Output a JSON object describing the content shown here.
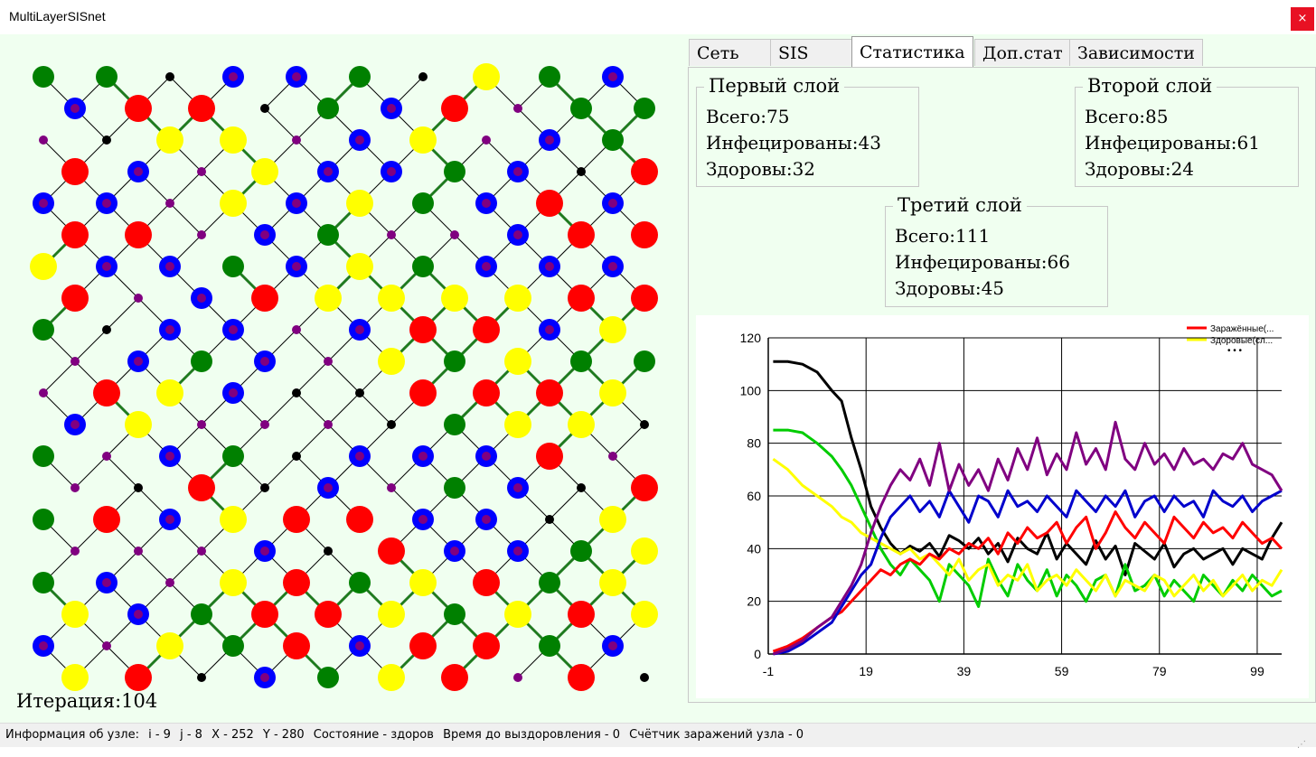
{
  "window": {
    "title": "MultiLayerSISnet",
    "close_label": "×"
  },
  "tabs": [
    "Сеть",
    "SIS",
    "Статистика",
    "Доп.стат",
    "Зависимости"
  ],
  "active_tab": 2,
  "iteration_label": "Итерация:104",
  "groups": [
    {
      "title": "Первый слой",
      "lines": [
        "Всего:75",
        "Инфецированы:43",
        "Здоровы:32"
      ]
    },
    {
      "title": "Второй слой",
      "lines": [
        "Всего:85",
        "Инфецированы:61",
        "Здоровы:24"
      ]
    },
    {
      "title": "Третий слой",
      "lines": [
        "Всего:111",
        "Инфецированы:66",
        "Здоровы:45"
      ]
    }
  ],
  "status": {
    "prefix": "Информация об узле:",
    "i": "i - 9",
    "j": "j - 8",
    "x": "X - 252",
    "y": "Y - 280",
    "state": "Состояние - здоров",
    "recovery": "Время до выздоровления - 0",
    "counter": "Счётчик заражений узла - 0"
  },
  "colors": {
    "infected": "#ff0000",
    "healthy": "#ffff00",
    "layer_blue": "#0000ff",
    "layer_green": "#008000",
    "small_node": "#800080",
    "tiny_node": "#000000",
    "edge_green": "#1f7a1f"
  },
  "network": {
    "cols": 20,
    "rows": 20,
    "rows_data": [
      "..B.p.......k..Y..........B...........B.....k",
      "....B...............Y...........p...........B...........k.....",
      ".......k...............B.........k...y..e........",
      "...k.......B..........S.........G...........G..B",
      "..k......................B.........P......."
    ]
  },
  "chart_data": {
    "type": "line",
    "title": "",
    "xlabel": "",
    "ylabel": "",
    "xlim": [
      -1,
      104
    ],
    "ylim": [
      0,
      120
    ],
    "x_ticks": [
      -1,
      19,
      39,
      59,
      79,
      99
    ],
    "y_ticks": [
      0,
      20,
      40,
      60,
      80,
      100,
      120
    ],
    "grid": true,
    "legend_position": "top-right",
    "legend_entries": [
      {
        "label": "Заражённые(...",
        "color": "#ff0000"
      },
      {
        "label": "Здоровые(сл...",
        "color": "#ffff00"
      }
    ],
    "legend_more": "• • •",
    "series": [
      {
        "color": "#000000",
        "x": [
          0,
          3,
          6,
          9,
          12,
          14,
          16,
          18,
          20,
          22,
          24,
          26,
          28,
          30,
          32,
          34,
          36,
          38,
          40,
          42,
          44,
          46,
          48,
          50,
          52,
          54,
          56,
          58,
          60,
          62,
          64,
          66,
          68,
          70,
          72,
          74,
          76,
          78,
          80,
          82,
          84,
          86,
          88,
          90,
          92,
          94,
          96,
          98,
          100,
          102,
          104
        ],
        "values": [
          111,
          111,
          110,
          107,
          100,
          96,
          82,
          70,
          56,
          48,
          42,
          38,
          41,
          39,
          42,
          37,
          45,
          43,
          40,
          44,
          38,
          42,
          35,
          44,
          40,
          38,
          46,
          36,
          42,
          38,
          34,
          43,
          36,
          41,
          30,
          42,
          39,
          36,
          42,
          33,
          38,
          40,
          36,
          38,
          40,
          34,
          40,
          38,
          36,
          44,
          50
        ]
      },
      {
        "color": "#00cc00",
        "x": [
          0,
          3,
          6,
          9,
          12,
          14,
          16,
          18,
          20,
          22,
          24,
          26,
          28,
          30,
          32,
          34,
          36,
          38,
          40,
          42,
          44,
          46,
          48,
          50,
          52,
          54,
          56,
          58,
          60,
          62,
          64,
          66,
          68,
          70,
          72,
          74,
          76,
          78,
          80,
          82,
          84,
          86,
          88,
          90,
          92,
          94,
          96,
          98,
          100,
          102,
          104
        ],
        "values": [
          85,
          85,
          84,
          80,
          75,
          70,
          64,
          56,
          48,
          40,
          34,
          30,
          36,
          32,
          28,
          20,
          34,
          30,
          26,
          18,
          36,
          28,
          22,
          34,
          28,
          24,
          32,
          22,
          30,
          26,
          20,
          28,
          30,
          22,
          34,
          24,
          26,
          30,
          22,
          28,
          24,
          20,
          30,
          26,
          22,
          28,
          24,
          30,
          26,
          22,
          24
        ]
      },
      {
        "color": "#ffff00",
        "x": [
          0,
          3,
          6,
          9,
          12,
          14,
          16,
          18,
          20,
          22,
          24,
          26,
          28,
          30,
          32,
          34,
          36,
          38,
          40,
          42,
          44,
          46,
          48,
          50,
          52,
          54,
          56,
          58,
          60,
          62,
          64,
          66,
          68,
          70,
          72,
          74,
          76,
          78,
          80,
          82,
          84,
          86,
          88,
          90,
          92,
          94,
          96,
          98,
          100,
          102,
          104
        ],
        "values": [
          74,
          70,
          64,
          60,
          56,
          52,
          50,
          46,
          44,
          42,
          40,
          38,
          40,
          36,
          38,
          34,
          30,
          36,
          28,
          32,
          34,
          26,
          30,
          28,
          34,
          24,
          28,
          30,
          26,
          32,
          28,
          24,
          30,
          22,
          28,
          26,
          24,
          30,
          28,
          22,
          26,
          30,
          24,
          28,
          22,
          26,
          30,
          24,
          28,
          26,
          32
        ]
      },
      {
        "color": "#ff0000",
        "x": [
          0,
          3,
          6,
          9,
          12,
          14,
          16,
          18,
          20,
          22,
          24,
          26,
          28,
          30,
          32,
          34,
          36,
          38,
          40,
          42,
          44,
          46,
          48,
          50,
          52,
          54,
          56,
          58,
          60,
          62,
          64,
          66,
          68,
          70,
          72,
          74,
          76,
          78,
          80,
          82,
          84,
          86,
          88,
          90,
          92,
          94,
          96,
          98,
          100,
          102,
          104
        ],
        "values": [
          1,
          3,
          6,
          10,
          14,
          16,
          20,
          24,
          28,
          32,
          30,
          34,
          36,
          34,
          38,
          36,
          40,
          38,
          42,
          40,
          44,
          38,
          46,
          42,
          48,
          44,
          46,
          50,
          42,
          48,
          52,
          40,
          46,
          54,
          48,
          44,
          50,
          46,
          42,
          52,
          48,
          44,
          50,
          46,
          48,
          44,
          50,
          46,
          42,
          44,
          40
        ]
      },
      {
        "color": "#0000cc",
        "x": [
          0,
          3,
          6,
          9,
          12,
          14,
          16,
          18,
          20,
          22,
          24,
          26,
          28,
          30,
          32,
          34,
          36,
          38,
          40,
          42,
          44,
          46,
          48,
          50,
          52,
          54,
          56,
          58,
          60,
          62,
          64,
          66,
          68,
          70,
          72,
          74,
          76,
          78,
          80,
          82,
          84,
          86,
          88,
          90,
          92,
          94,
          96,
          98,
          100,
          102,
          104
        ],
        "values": [
          0,
          1,
          4,
          8,
          12,
          18,
          24,
          30,
          34,
          44,
          52,
          56,
          60,
          54,
          58,
          52,
          62,
          56,
          50,
          60,
          58,
          52,
          62,
          56,
          58,
          54,
          60,
          56,
          52,
          62,
          58,
          54,
          60,
          56,
          62,
          52,
          58,
          60,
          54,
          60,
          56,
          58,
          52,
          62,
          58,
          56,
          60,
          54,
          58,
          60,
          62
        ]
      },
      {
        "color": "#800080",
        "x": [
          0,
          3,
          6,
          9,
          12,
          14,
          16,
          18,
          20,
          22,
          24,
          26,
          28,
          30,
          32,
          34,
          36,
          38,
          40,
          42,
          44,
          46,
          48,
          50,
          52,
          54,
          56,
          58,
          60,
          62,
          64,
          66,
          68,
          70,
          72,
          74,
          76,
          78,
          80,
          82,
          84,
          86,
          88,
          90,
          92,
          94,
          96,
          98,
          100,
          102,
          104
        ],
        "values": [
          0,
          2,
          5,
          10,
          14,
          20,
          26,
          34,
          46,
          56,
          64,
          70,
          66,
          74,
          64,
          80,
          62,
          72,
          64,
          70,
          62,
          74,
          66,
          78,
          70,
          82,
          68,
          76,
          70,
          84,
          72,
          78,
          70,
          88,
          74,
          70,
          80,
          72,
          76,
          70,
          78,
          72,
          74,
          70,
          76,
          74,
          80,
          72,
          70,
          68,
          62
        ]
      }
    ]
  }
}
